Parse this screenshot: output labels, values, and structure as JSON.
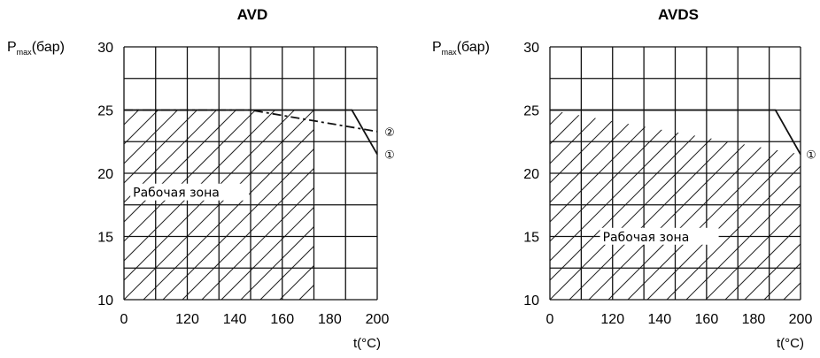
{
  "chart_data": [
    {
      "type": "area",
      "title": "AVD",
      "ylabel_main": "P",
      "ylabel_sub": "max",
      "ylabel_unit": "(бар)",
      "xlabel": "t(°C)",
      "xlim": [
        0,
        200
      ],
      "ylim": [
        10,
        30
      ],
      "x_ticks": [
        "0",
        "120",
        "140",
        "160",
        "180",
        "200"
      ],
      "y_ticks": [
        "10",
        "15",
        "20",
        "25",
        "30"
      ],
      "grid": true,
      "zone_label": "Рабочая зона",
      "zone": {
        "x": [
          0,
          150,
          150,
          0
        ],
        "y": [
          10,
          10,
          25,
          25
        ]
      },
      "series": [
        {
          "name": "①",
          "style": "solid",
          "x": [
            0,
            180,
            200
          ],
          "y": [
            25,
            25,
            21.5
          ]
        },
        {
          "name": "②",
          "style": "dashed",
          "x": [
            0,
            100,
            200
          ],
          "y": [
            25,
            25,
            23.3
          ]
        }
      ]
    },
    {
      "type": "area",
      "title": "AVDS",
      "ylabel_main": "P",
      "ylabel_sub": "max",
      "ylabel_unit": "(бар)",
      "xlabel": "t(°C)",
      "xlim": [
        0,
        200
      ],
      "ylim": [
        10,
        30
      ],
      "x_ticks": [
        "0",
        "120",
        "140",
        "160",
        "180",
        "200"
      ],
      "y_ticks": [
        "10",
        "15",
        "20",
        "25",
        "30"
      ],
      "grid": true,
      "zone_label": "Рабочая зона",
      "zone": {
        "x": [
          0,
          180,
          200,
          200,
          0
        ],
        "y": [
          10,
          10,
          10,
          21.5,
          25
        ]
      },
      "series": [
        {
          "name": "①",
          "style": "solid",
          "x": [
            0,
            180,
            200
          ],
          "y": [
            25,
            25,
            21.5
          ]
        }
      ]
    }
  ]
}
